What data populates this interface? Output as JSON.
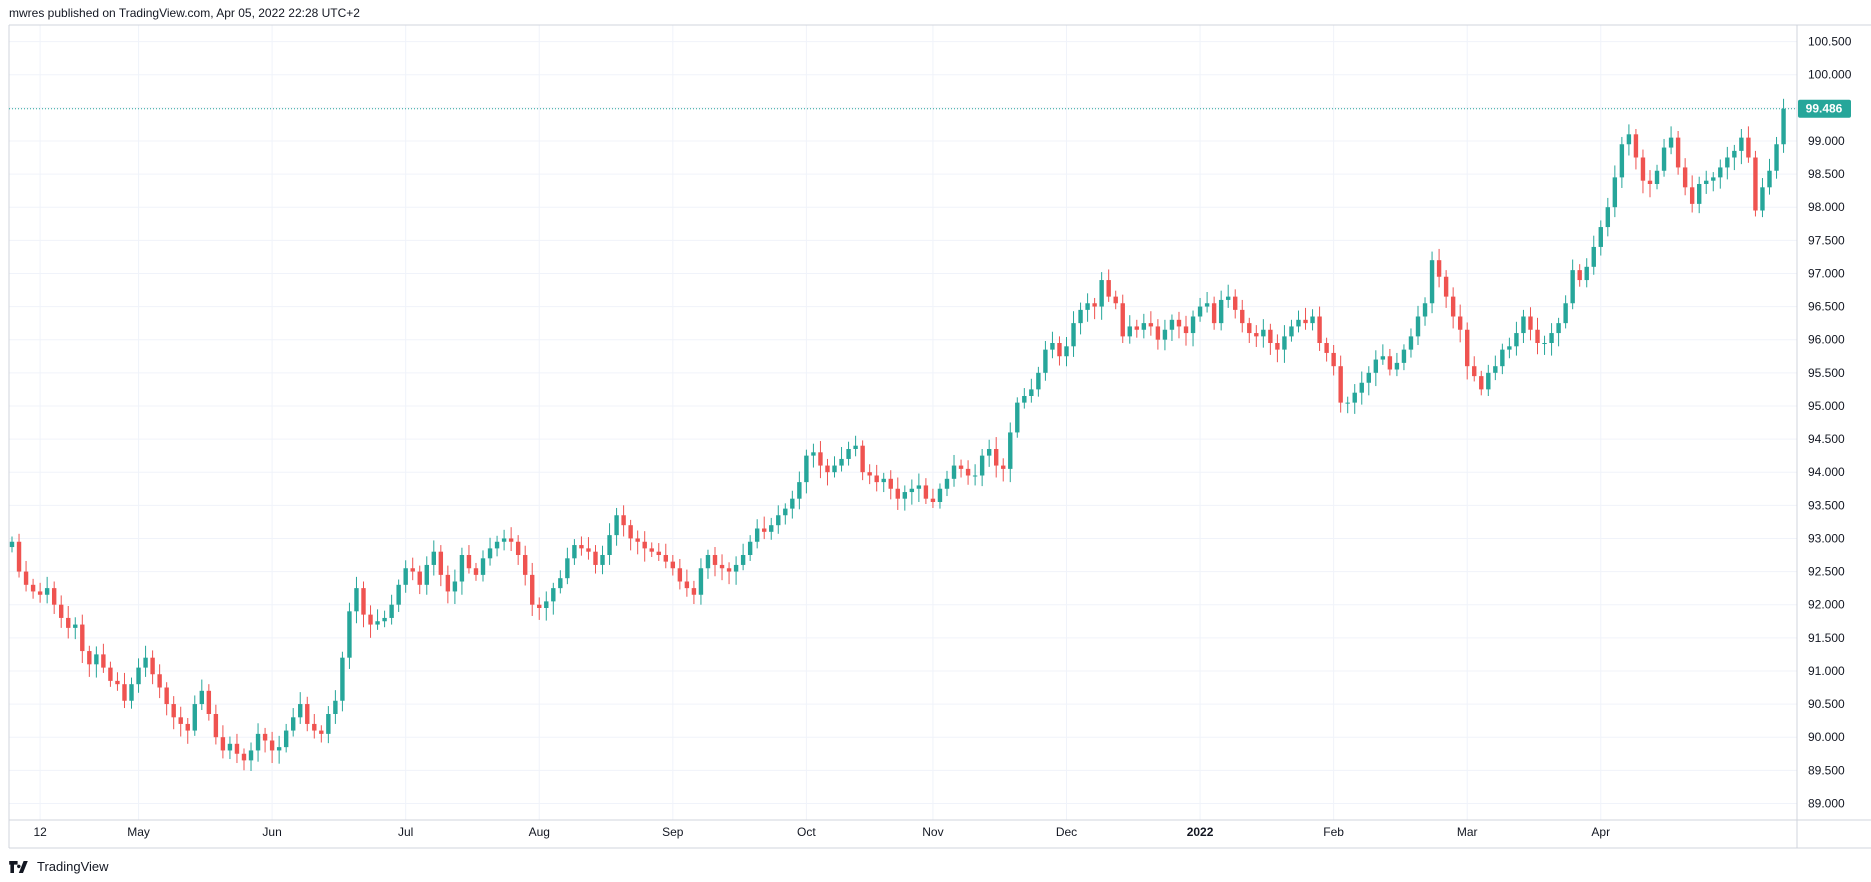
{
  "header": {
    "text": "mwres published on TradingView.com, Apr 05, 2022 22:28 UTC+2"
  },
  "footer": {
    "brand": "TradingView",
    "logo_icon": "tradingview-logo-icon"
  },
  "colors": {
    "up": "#26a69a",
    "down": "#ef5350",
    "grid": "#f0f3fa",
    "price_line": "#26a69a",
    "badge_bg": "#26a69a"
  },
  "chart_data": {
    "type": "candlestick",
    "y_axis": {
      "min": 88.75,
      "max": 100.75,
      "ticks": [
        "89.000",
        "89.500",
        "90.000",
        "90.500",
        "91.000",
        "91.500",
        "92.000",
        "92.500",
        "93.000",
        "93.500",
        "94.000",
        "94.500",
        "95.000",
        "95.500",
        "96.000",
        "96.500",
        "97.000",
        "97.500",
        "98.000",
        "98.500",
        "99.000",
        "99.500",
        "100.000",
        "100.500"
      ]
    },
    "x_axis": {
      "labels": [
        {
          "text": "12",
          "bold": false,
          "index": 4
        },
        {
          "text": "May",
          "bold": false,
          "index": 18
        },
        {
          "text": "Jun",
          "bold": false,
          "index": 37
        },
        {
          "text": "Jul",
          "bold": false,
          "index": 56
        },
        {
          "text": "Aug",
          "bold": false,
          "index": 75
        },
        {
          "text": "Sep",
          "bold": false,
          "index": 94
        },
        {
          "text": "Oct",
          "bold": false,
          "index": 113
        },
        {
          "text": "Nov",
          "bold": false,
          "index": 131
        },
        {
          "text": "Dec",
          "bold": false,
          "index": 150
        },
        {
          "text": "2022",
          "bold": true,
          "index": 169
        },
        {
          "text": "Feb",
          "bold": false,
          "index": 188
        },
        {
          "text": "Mar",
          "bold": false,
          "index": 207
        },
        {
          "text": "Apr",
          "bold": false,
          "index": 226
        }
      ]
    },
    "last_price": 99.486,
    "last_price_label": "99.486",
    "grid": true,
    "closes": [
      92.95,
      92.5,
      92.3,
      92.2,
      92.15,
      92.25,
      92.0,
      91.8,
      91.65,
      91.7,
      91.3,
      91.1,
      91.25,
      91.05,
      90.85,
      90.8,
      90.55,
      90.8,
      91.05,
      91.2,
      90.95,
      90.75,
      90.5,
      90.3,
      90.2,
      90.1,
      90.5,
      90.7,
      90.35,
      90.0,
      89.8,
      89.9,
      89.75,
      89.65,
      89.8,
      90.05,
      89.95,
      89.8,
      89.85,
      90.1,
      90.3,
      90.5,
      90.2,
      90.1,
      90.05,
      90.35,
      90.55,
      91.2,
      91.9,
      92.25,
      91.85,
      91.7,
      91.75,
      91.8,
      92.0,
      92.3,
      92.55,
      92.5,
      92.3,
      92.6,
      92.8,
      92.45,
      92.2,
      92.35,
      92.75,
      92.55,
      92.45,
      92.7,
      92.85,
      92.95,
      93.0,
      92.95,
      92.75,
      92.45,
      92.0,
      91.95,
      92.05,
      92.25,
      92.4,
      92.7,
      92.9,
      92.85,
      92.8,
      92.6,
      92.75,
      93.05,
      93.35,
      93.2,
      93.0,
      92.95,
      92.85,
      92.8,
      92.75,
      92.65,
      92.55,
      92.35,
      92.25,
      92.15,
      92.55,
      92.75,
      92.6,
      92.55,
      92.5,
      92.6,
      92.75,
      92.95,
      93.15,
      93.1,
      93.2,
      93.35,
      93.45,
      93.6,
      93.85,
      94.25,
      94.3,
      94.1,
      94.0,
      94.1,
      94.2,
      94.35,
      94.4,
      94.0,
      93.95,
      93.85,
      93.9,
      93.75,
      93.6,
      93.7,
      93.75,
      93.8,
      93.6,
      93.55,
      93.75,
      93.9,
      94.1,
      94.05,
      93.95,
      93.95,
      94.25,
      94.35,
      94.1,
      94.05,
      94.6,
      95.05,
      95.15,
      95.25,
      95.5,
      95.85,
      95.95,
      95.75,
      95.9,
      96.25,
      96.45,
      96.55,
      96.5,
      96.9,
      96.65,
      96.55,
      96.05,
      96.2,
      96.15,
      96.25,
      96.2,
      96.0,
      96.15,
      96.3,
      96.2,
      96.1,
      96.35,
      96.5,
      96.55,
      96.25,
      96.6,
      96.65,
      96.45,
      96.25,
      96.1,
      96.05,
      96.15,
      95.95,
      95.85,
      96.05,
      96.2,
      96.3,
      96.25,
      96.35,
      95.95,
      95.8,
      95.6,
      95.05,
      95.05,
      95.2,
      95.35,
      95.5,
      95.7,
      95.75,
      95.55,
      95.65,
      95.85,
      96.05,
      96.35,
      96.55,
      97.2,
      96.95,
      96.65,
      96.35,
      96.15,
      95.6,
      95.45,
      95.25,
      95.5,
      95.6,
      95.85,
      95.9,
      96.1,
      96.35,
      96.15,
      95.95,
      95.95,
      96.1,
      96.25,
      96.55,
      97.05,
      96.9,
      97.1,
      97.4,
      97.7,
      98.0,
      98.45,
      98.95,
      99.1,
      98.75,
      98.4,
      98.35,
      98.55,
      98.9,
      99.05,
      98.6,
      98.3,
      98.05,
      98.35,
      98.4,
      98.45,
      98.6,
      98.75,
      98.85,
      99.05,
      98.75,
      97.95,
      98.3,
      98.55,
      98.95,
      99.486
    ]
  }
}
